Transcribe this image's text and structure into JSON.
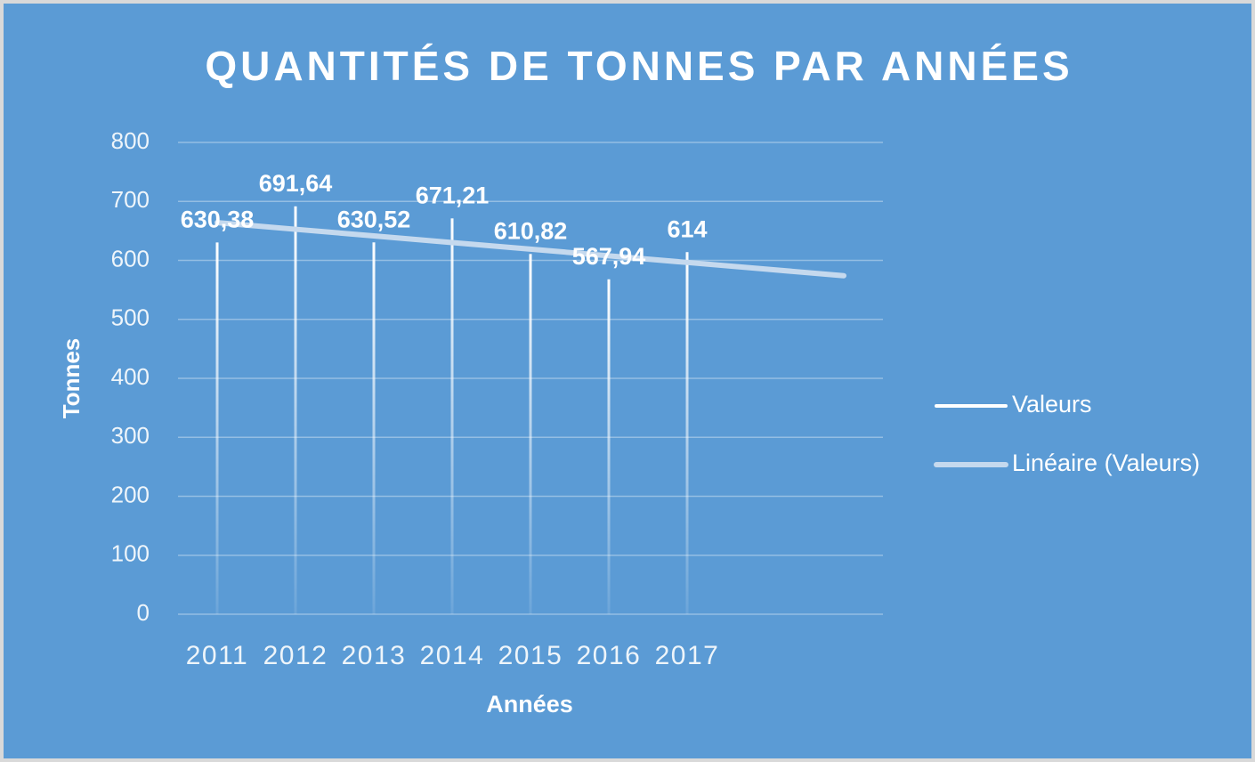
{
  "chart_data": {
    "type": "bar",
    "title": "QUANTITÉS DE TONNES PAR ANNÉES",
    "x_label": "Années",
    "y_label": "Tonnes",
    "categories": [
      "2011",
      "2012",
      "2013",
      "2014",
      "2015",
      "2016",
      "2017",
      null,
      null
    ],
    "series": [
      {
        "name": "Valeurs",
        "color": "#ffffff",
        "type": "bar",
        "values": [
          630.38,
          691.64,
          630.52,
          671.21,
          610.82,
          567.94,
          614,
          null,
          null
        ],
        "value_labels": [
          "630,38",
          "691,64",
          "630,52",
          "671,21",
          "610,82",
          "567,94",
          "614",
          null,
          null
        ]
      },
      {
        "name": "Linéaire (Valeurs)",
        "color": "#c5d9ee",
        "type": "line",
        "values": [
          664,
          652.75,
          641.5,
          630.25,
          619,
          607.75,
          596.5,
          585.25,
          574
        ]
      }
    ],
    "ylim": [
      0,
      800
    ],
    "yticks": [
      0,
      100,
      200,
      300,
      400,
      500,
      600,
      700,
      800
    ],
    "grid": true,
    "legend": "right"
  }
}
